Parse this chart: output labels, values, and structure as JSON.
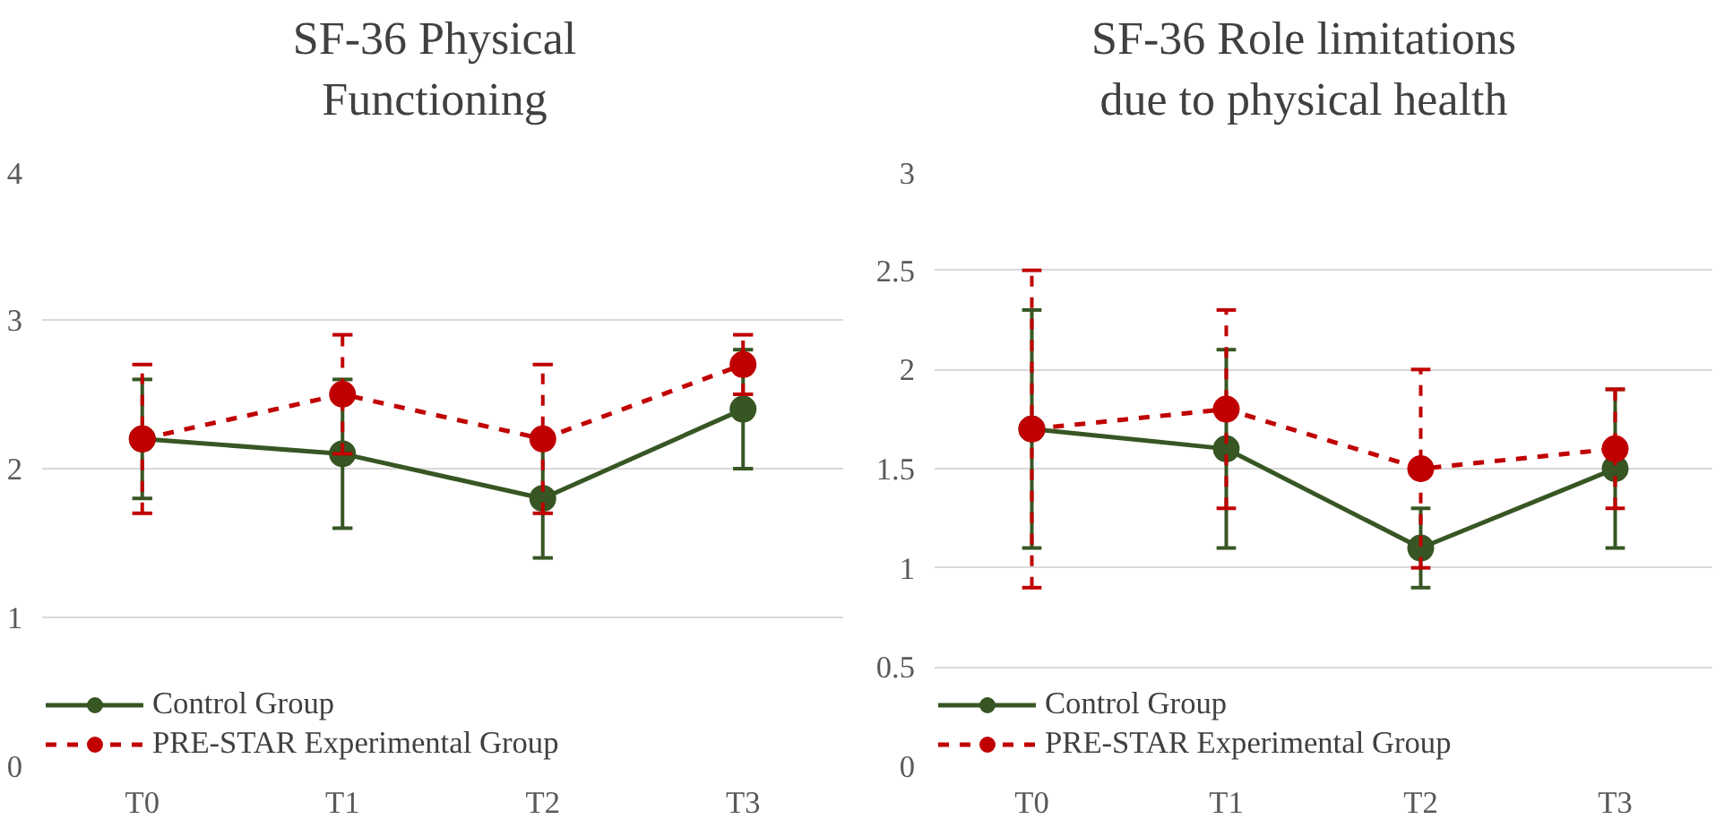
{
  "chart_data": [
    {
      "type": "line",
      "title": "SF-36 Physical Functioning",
      "categories": [
        "T0",
        "T1",
        "T2",
        "T3"
      ],
      "ylim": [
        0,
        4
      ],
      "yticks": [
        0,
        1,
        2,
        3,
        4
      ],
      "grid": "y",
      "legend": "bottom",
      "marker": "circle",
      "series": [
        {
          "name": "Control Group",
          "color": "#375623",
          "line_style": "solid",
          "values": [
            2.2,
            2.1,
            1.8,
            2.4
          ],
          "errors": [
            0.4,
            0.5,
            0.4,
            0.4
          ]
        },
        {
          "name": "PRE-STAR Experimental Group",
          "color": "#c00000",
          "line_style": "dashed",
          "values": [
            2.2,
            2.5,
            2.2,
            2.7
          ],
          "errors": [
            0.5,
            0.4,
            0.5,
            0.2
          ]
        }
      ]
    },
    {
      "type": "line",
      "title": "SF-36 Role limitations due to physical health",
      "categories": [
        "T0",
        "T1",
        "T2",
        "T3"
      ],
      "ylim": [
        0,
        3
      ],
      "yticks": [
        0,
        0.5,
        1,
        1.5,
        2,
        2.5,
        3
      ],
      "grid": "y",
      "legend": "bottom",
      "marker": "circle",
      "series": [
        {
          "name": "Control Group",
          "color": "#375623",
          "line_style": "solid",
          "values": [
            1.7,
            1.6,
            1.1,
            1.5
          ],
          "errors": [
            0.6,
            0.5,
            0.2,
            0.4
          ]
        },
        {
          "name": "PRE-STAR Experimental Group",
          "color": "#c00000",
          "line_style": "dashed",
          "values": [
            1.7,
            1.8,
            1.5,
            1.6
          ],
          "errors": [
            0.8,
            0.5,
            0.5,
            0.3
          ]
        }
      ]
    }
  ]
}
